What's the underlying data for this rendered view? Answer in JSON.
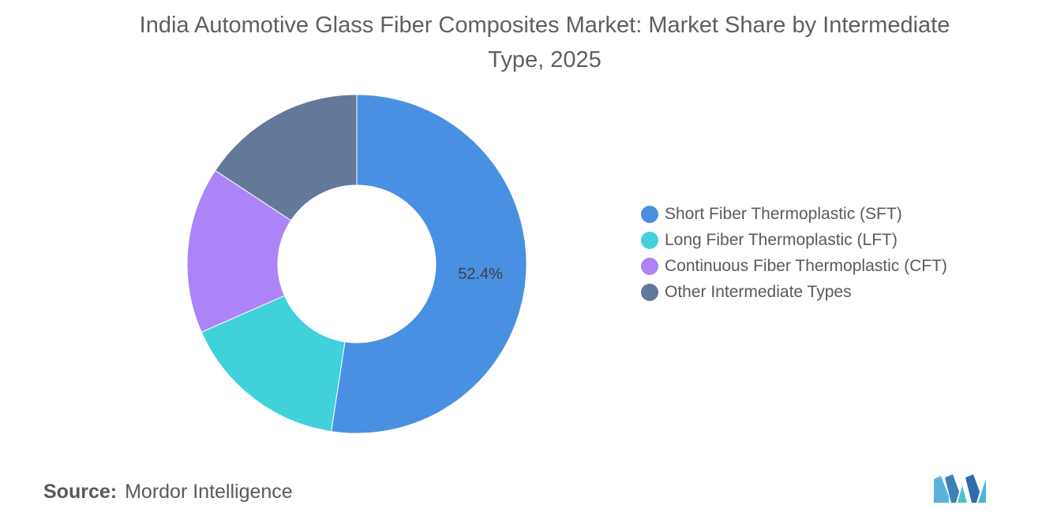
{
  "title": "India Automotive Glass Fiber Composites Market: Market Share by Intermediate Type, 2025",
  "source": {
    "label": "Source:",
    "value": "Mordor Intelligence"
  },
  "colors": {
    "sft": "#4a90e2",
    "lft": "#40d1db",
    "cft": "#ad84f7",
    "other": "#647899"
  },
  "chart_data": {
    "type": "pie",
    "title": "India Automotive Glass Fiber Composites Market: Market Share by Intermediate Type, 2025",
    "donut": true,
    "legend_position": "right",
    "series": [
      {
        "name": "Short Fiber Thermoplastic (SFT)",
        "value": 52.4,
        "label": "52.4%",
        "color": "#4a90e2"
      },
      {
        "name": "Long Fiber Thermoplastic (LFT)",
        "value": 16.0,
        "label": "",
        "color": "#40d1db"
      },
      {
        "name": "Continuous Fiber Thermoplastic (CFT)",
        "value": 15.9,
        "label": "",
        "color": "#ad84f7"
      },
      {
        "name": "Other Intermediate Types",
        "value": 15.7,
        "label": "",
        "color": "#647899"
      }
    ],
    "draw_order": [
      3,
      2,
      1,
      0
    ]
  }
}
